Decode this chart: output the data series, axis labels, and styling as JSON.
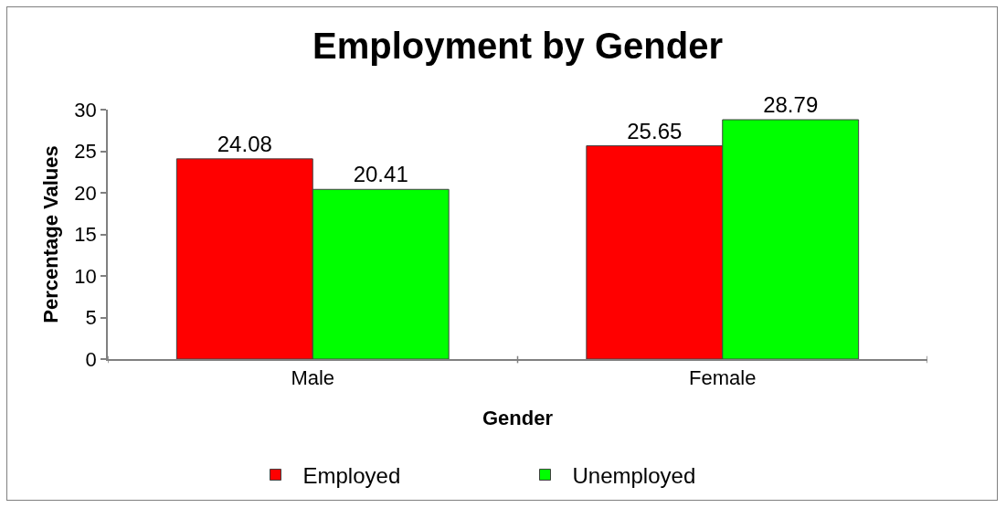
{
  "chart_data": {
    "type": "bar",
    "title": "Employment by Gender",
    "xlabel": "Gender",
    "ylabel": "Percentage Values",
    "categories": [
      "Male",
      "Female"
    ],
    "series": [
      {
        "name": "Employed",
        "color": "#ff0000",
        "values": [
          24.08,
          25.65
        ]
      },
      {
        "name": "Unemployed",
        "color": "#00ff00",
        "values": [
          20.41,
          28.79
        ]
      }
    ],
    "ylim": [
      0,
      30
    ],
    "yticks": [
      0,
      5,
      10,
      15,
      20,
      25,
      30
    ],
    "data_labels": true,
    "legend": "bottom"
  }
}
